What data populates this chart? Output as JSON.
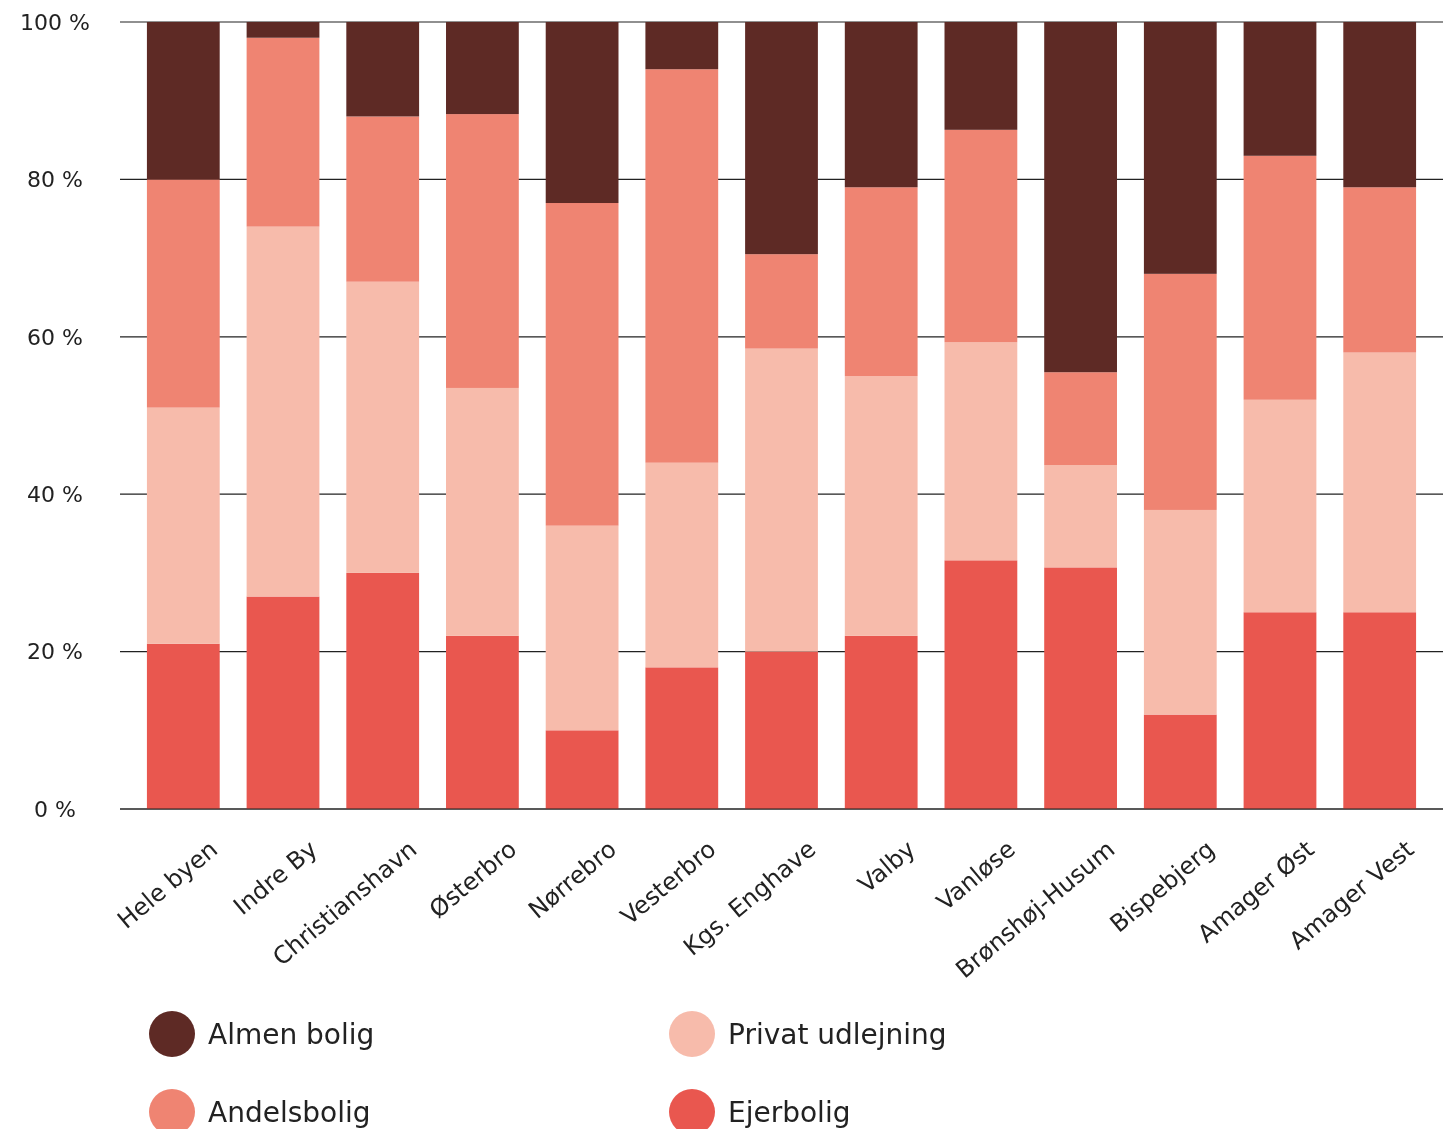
{
  "chart_data": {
    "type": "bar",
    "stacked": true,
    "categories": [
      "Hele byen",
      "Indre By",
      "Christianshavn",
      "Østerbro",
      "Nørrebro",
      "Vesterbro",
      "Kgs. Enghave",
      "Valby",
      "Vanløse",
      "Brønshøj-Husum",
      "Bispebjerg",
      "Amager Øst",
      "Amager Vest"
    ],
    "series": [
      {
        "name": "Ejerbolig",
        "color": "#e9574f",
        "values": [
          21,
          27,
          30,
          22,
          10,
          18,
          20,
          22,
          31.6,
          30.7,
          12,
          25,
          25
        ]
      },
      {
        "name": "Privat udlejning",
        "color": "#f7bbab",
        "values": [
          30,
          47,
          37,
          31.5,
          26,
          26,
          38.5,
          33,
          27.7,
          13,
          26,
          27,
          33
        ]
      },
      {
        "name": "Andelsbolig",
        "color": "#ef8472",
        "values": [
          29,
          24,
          21,
          34.8,
          41,
          50,
          12,
          24,
          27,
          11.8,
          30,
          31,
          21
        ]
      },
      {
        "name": "Almen bolig",
        "color": "#5e2a25",
        "values": [
          20,
          2,
          12,
          11.7,
          23,
          6,
          29.5,
          21,
          13.7,
          44.5,
          32,
          17,
          21
        ]
      }
    ],
    "ylim": [
      0,
      100
    ],
    "yticks": [
      {
        "value": 0,
        "label": "0 %"
      },
      {
        "value": 20,
        "label": "20 %"
      },
      {
        "value": 40,
        "label": "40 %"
      },
      {
        "value": 60,
        "label": "60 %"
      },
      {
        "value": 80,
        "label": "80 %"
      },
      {
        "value": 100,
        "label": "100 %"
      }
    ],
    "grid": "y",
    "legend": "bottom"
  }
}
